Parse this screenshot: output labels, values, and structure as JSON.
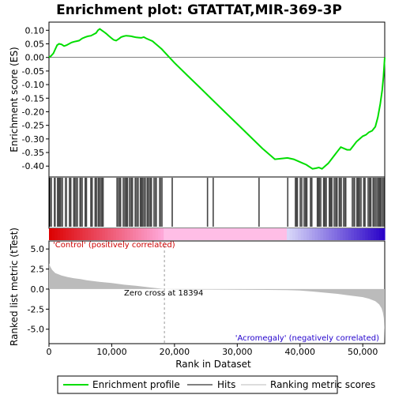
{
  "chart_data": {
    "type": "line",
    "title": "Enrichment plot: GTATTAT,MIR-369-3P",
    "es_panel": {
      "ylabel": "Enrichment score (ES)",
      "ylim": [
        -0.44,
        0.13
      ],
      "yticks": [
        0.1,
        0.05,
        0.0,
        -0.05,
        -0.1,
        -0.15,
        -0.2,
        -0.25,
        -0.3,
        -0.35,
        -0.4
      ],
      "ytick_labels": [
        "0.10",
        "0.05",
        "0.00",
        "-0.05",
        "-0.10",
        "-0.15",
        "-0.20",
        "-0.25",
        "-0.30",
        "-0.35",
        "-0.40"
      ],
      "line_color": "#00dd00",
      "series": [
        {
          "x": [
            0,
            300,
            700,
            1000,
            1300,
            1600,
            2000,
            2400,
            2800,
            3200,
            3600,
            4000,
            4400,
            4800,
            5300,
            5800,
            6200,
            6700,
            7100,
            7500,
            7800,
            8100,
            8400,
            8700,
            9100,
            9500,
            9900,
            10300,
            10700,
            11100,
            11500,
            11900,
            12300,
            12700,
            13100,
            13500,
            13900,
            14300,
            14700,
            15100,
            15500,
            16000,
            16500,
            17000,
            17500,
            18000,
            18394,
            20000,
            22000,
            24000,
            26000,
            28000,
            30000,
            32000,
            34000,
            36000,
            38000,
            39000,
            40000,
            41000,
            42000,
            42500,
            43000,
            43500,
            44000,
            44500,
            45000,
            45500,
            46000,
            46500,
            47000,
            47500,
            48000,
            48500,
            49000,
            49500,
            50000,
            50500,
            51000,
            51500,
            52000,
            52400,
            52800,
            53100,
            53300,
            53500
          ],
          "y": [
            0.0,
            0.005,
            0.015,
            0.03,
            0.045,
            0.05,
            0.048,
            0.042,
            0.045,
            0.05,
            0.055,
            0.058,
            0.06,
            0.062,
            0.07,
            0.075,
            0.078,
            0.08,
            0.085,
            0.09,
            0.1,
            0.105,
            0.1,
            0.095,
            0.088,
            0.08,
            0.072,
            0.065,
            0.062,
            0.068,
            0.075,
            0.078,
            0.08,
            0.079,
            0.078,
            0.076,
            0.074,
            0.073,
            0.072,
            0.075,
            0.07,
            0.065,
            0.06,
            0.05,
            0.04,
            0.03,
            0.02,
            -0.02,
            -0.065,
            -0.11,
            -0.155,
            -0.2,
            -0.245,
            -0.29,
            -0.335,
            -0.375,
            -0.37,
            -0.375,
            -0.385,
            -0.395,
            -0.41,
            -0.408,
            -0.405,
            -0.41,
            -0.4,
            -0.39,
            -0.375,
            -0.36,
            -0.345,
            -0.33,
            -0.335,
            -0.34,
            -0.34,
            -0.325,
            -0.31,
            -0.3,
            -0.29,
            -0.285,
            -0.275,
            -0.27,
            -0.255,
            -0.22,
            -0.17,
            -0.12,
            -0.07,
            0.0
          ]
        }
      ]
    },
    "hits_panel": {
      "hit_clusters": [
        [
          100,
          500
        ],
        [
          800,
          1100
        ],
        [
          1300,
          2200
        ],
        [
          2600,
          2900
        ],
        [
          3200,
          3600
        ],
        [
          3900,
          4600
        ],
        [
          4900,
          5400
        ],
        [
          5700,
          6100
        ],
        [
          6600,
          7000
        ],
        [
          7300,
          7700
        ],
        [
          7800,
          8700
        ],
        [
          10800,
          11500
        ],
        [
          11800,
          12600
        ],
        [
          12800,
          13400
        ],
        [
          13700,
          14300
        ],
        [
          14500,
          15400
        ],
        [
          15600,
          16400
        ],
        [
          16700,
          17200
        ],
        [
          17600,
          18100
        ],
        [
          19600,
          19800
        ],
        [
          25200,
          25400
        ],
        [
          26100,
          26300
        ],
        [
          33400,
          33600
        ],
        [
          38000,
          38200
        ],
        [
          39200,
          39700
        ],
        [
          40000,
          40400
        ],
        [
          40600,
          41200
        ],
        [
          41600,
          42000
        ],
        [
          42700,
          43400
        ],
        [
          43700,
          44300
        ],
        [
          44600,
          45200
        ],
        [
          45400,
          46000
        ],
        [
          46200,
          46700
        ],
        [
          46900,
          47400
        ],
        [
          48300,
          48800
        ],
        [
          49000,
          49800
        ],
        [
          50100,
          50500
        ],
        [
          50800,
          51400
        ],
        [
          51600,
          52200
        ],
        [
          52300,
          53000
        ],
        [
          53100,
          53500
        ]
      ]
    },
    "rank_panel": {
      "ylabel": "Ranked list metric (tTest)",
      "xlabel": "Rank in Dataset",
      "xlim": [
        0,
        53500
      ],
      "xticks": [
        0,
        10000,
        20000,
        30000,
        40000,
        50000
      ],
      "xtick_labels": [
        "0",
        "10,000",
        "20,000",
        "30,000",
        "40,000",
        "50,000"
      ],
      "ylim": [
        -6.8,
        6.0
      ],
      "yticks": [
        5.0,
        2.5,
        0.0,
        -2.5,
        -5.0
      ],
      "ytick_labels": [
        "5.0",
        "2.5",
        "0.0",
        "-2.5",
        "-5.0"
      ],
      "zero_cross": 18394,
      "zero_cross_text": "Zero cross at 18394",
      "pos_label": "'Control' (positively correlated)",
      "neg_label": "'Acromegaly' (negatively correlated)",
      "pos_color": "#cc0000",
      "neg_color": "#2200cc",
      "metric": {
        "x": [
          0,
          200,
          500,
          1000,
          2000,
          3000,
          4000,
          5000,
          6000,
          7000,
          8000,
          10000,
          12000,
          14000,
          16000,
          18394,
          20000,
          25000,
          30000,
          35000,
          38000,
          40000,
          42000,
          44000,
          46000,
          47500,
          48500,
          50000,
          51000,
          52000,
          52600,
          53000,
          53200,
          53350,
          53450,
          53500
        ],
        "y": [
          3.2,
          2.8,
          2.4,
          2.0,
          1.7,
          1.5,
          1.35,
          1.25,
          1.1,
          1.0,
          0.9,
          0.75,
          0.55,
          0.4,
          0.22,
          0.0,
          -0.03,
          -0.06,
          -0.08,
          -0.1,
          -0.12,
          -0.18,
          -0.3,
          -0.45,
          -0.6,
          -0.75,
          -0.85,
          -1.0,
          -1.2,
          -1.5,
          -1.9,
          -2.4,
          -2.9,
          -3.6,
          -5.0,
          -6.6
        ]
      }
    },
    "legend": {
      "entries": [
        "Enrichment profile",
        "Hits",
        "Ranking metric scores"
      ],
      "colors": [
        "#00dd00",
        "#000000",
        "#bbbbbb"
      ]
    }
  }
}
